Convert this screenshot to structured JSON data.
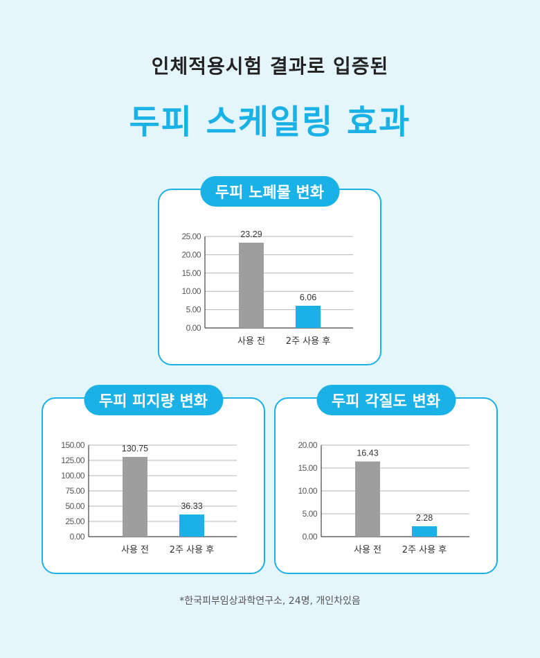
{
  "header": {
    "subtitle": "인체적용시험 결과로 입증된",
    "title": "두피 스케일링 효과"
  },
  "colors": {
    "accent": "#19b1e6",
    "before_bar": "#9e9e9e",
    "after_bar": "#19b1e6"
  },
  "footnote": "*한국피부임상과학연구소, 24명, 개인차있음",
  "chart_data": [
    {
      "type": "bar",
      "title": "두피 노폐물 변화",
      "categories": [
        "사용 전",
        "2주 사용 후"
      ],
      "values": [
        23.29,
        6.06
      ],
      "value_labels": [
        "23.29",
        "6.06"
      ],
      "ylim": [
        0,
        25
      ],
      "yticks": [
        "0.00",
        "5.00",
        "10.00",
        "15.00",
        "20.00",
        "25.00"
      ],
      "grid": true
    },
    {
      "type": "bar",
      "title": "두피 피지량 변화",
      "categories": [
        "사용 전",
        "2주 사용 후"
      ],
      "values": [
        130.75,
        36.33
      ],
      "value_labels": [
        "130.75",
        "36.33"
      ],
      "ylim": [
        0,
        150
      ],
      "yticks": [
        "0.00",
        "25.00",
        "50.00",
        "75.00",
        "100.00",
        "125.00",
        "150.00"
      ],
      "grid": true
    },
    {
      "type": "bar",
      "title": "두피 각질도 변화",
      "categories": [
        "사용 전",
        "2주 사용 후"
      ],
      "values": [
        16.43,
        2.28
      ],
      "value_labels": [
        "16.43",
        "2.28"
      ],
      "ylim": [
        0,
        20
      ],
      "yticks": [
        "0.00",
        "5.00",
        "10.00",
        "15.00",
        "20.00"
      ],
      "grid": true
    }
  ]
}
